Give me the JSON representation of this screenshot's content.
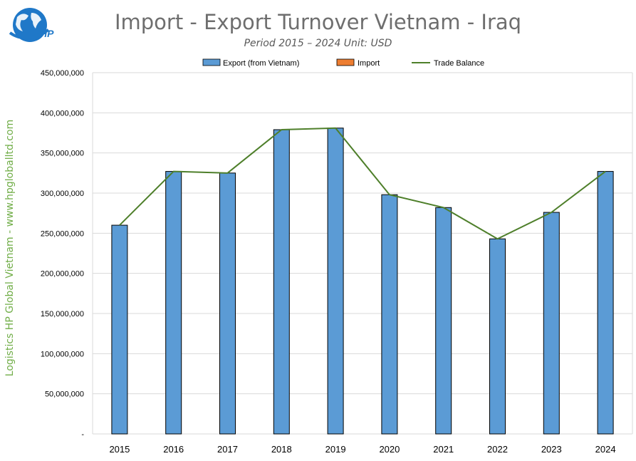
{
  "header": {
    "title": "Import - Export Turnover Vietnam - Iraq",
    "subtitle": "Period 2015 – 2024  Unit: USD"
  },
  "side_text": "Logistics HP Global Vietnam - www.hpgloballtd.com",
  "logo": {
    "text": "HP",
    "icon": "globe-logo-icon"
  },
  "colors": {
    "export": "#5b9bd5",
    "import": "#ed7d31",
    "balance": "#4e7f2a",
    "grid": "#d9d9d9"
  },
  "chart_data": {
    "type": "bar",
    "title": "Import - Export Turnover Vietnam - Iraq",
    "subtitle": "Period 2015 – 2024  Unit: USD",
    "categories": [
      "2015",
      "2016",
      "2017",
      "2018",
      "2019",
      "2020",
      "2021",
      "2022",
      "2023",
      "2024"
    ],
    "series": [
      {
        "name": "Export (from Vietnam)",
        "type": "bar",
        "values": [
          260000000,
          327000000,
          325000000,
          379000000,
          381000000,
          298000000,
          282000000,
          243000000,
          276000000,
          327000000
        ]
      },
      {
        "name": "Import",
        "type": "bar",
        "values": [
          0,
          0,
          0,
          0,
          0,
          0,
          0,
          0,
          0,
          0
        ]
      },
      {
        "name": "Trade Balance",
        "type": "line",
        "values": [
          260000000,
          327000000,
          325000000,
          379000000,
          381000000,
          298000000,
          282000000,
          243000000,
          276000000,
          327000000
        ]
      }
    ],
    "ylim": [
      0,
      450000000
    ],
    "yticks": [
      "-",
      "50,000,000",
      "100,000,000",
      "150,000,000",
      "200,000,000",
      "250,000,000",
      "300,000,000",
      "350,000,000",
      "400,000,000",
      "450,000,000"
    ],
    "grid": true,
    "legend_position": "top"
  }
}
